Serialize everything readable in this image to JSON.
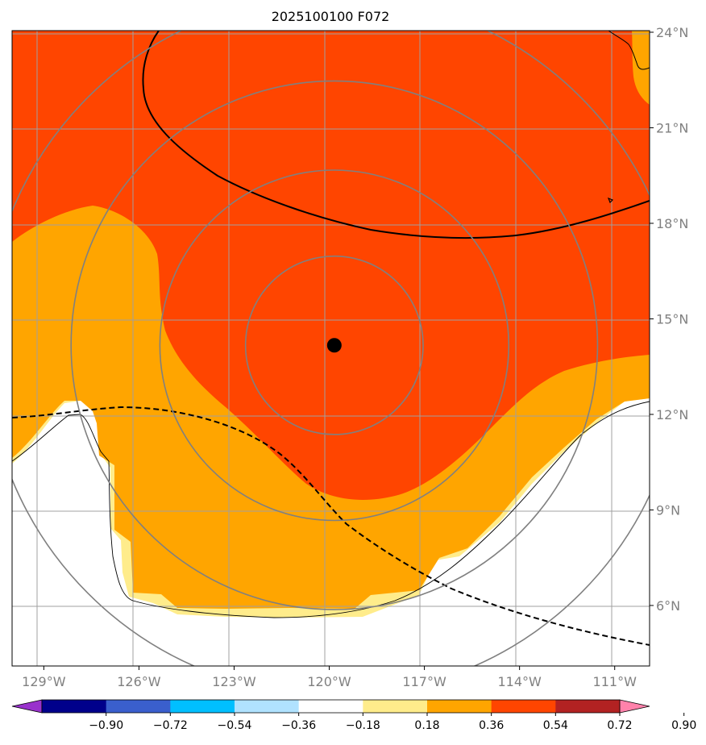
{
  "chart_data": {
    "type": "heatmap",
    "title": "2025100100 F072",
    "map": {
      "lon_range": [
        -130,
        -109.9
      ],
      "lat_range": [
        4.1,
        24.05
      ],
      "grid": true
    },
    "x_ticks": [
      {
        "value": -129,
        "label": "129°W"
      },
      {
        "value": -126,
        "label": "126°W"
      },
      {
        "value": -123,
        "label": "123°W"
      },
      {
        "value": -120,
        "label": "120°W"
      },
      {
        "value": -117,
        "label": "117°W"
      },
      {
        "value": -114,
        "label": "114°W"
      },
      {
        "value": -111,
        "label": "111°W"
      }
    ],
    "y_ticks": [
      {
        "value": 24,
        "label": "24°N"
      },
      {
        "value": 21,
        "label": "21°N"
      },
      {
        "value": 18,
        "label": "18°N"
      },
      {
        "value": 15,
        "label": "15°N"
      },
      {
        "value": 12,
        "label": "12°N"
      },
      {
        "value": 9,
        "label": "9°N"
      },
      {
        "value": 6,
        "label": "6°N"
      }
    ],
    "center": {
      "lon": -119.84,
      "lat": 14.17
    },
    "range_rings_deg": [
      2.8,
      5.5,
      8.3,
      11
    ],
    "colorbar": {
      "levels": [
        -0.9,
        -0.72,
        -0.54,
        -0.36,
        -0.18,
        0.18,
        0.36,
        0.54,
        0.72,
        0.9
      ],
      "labels": [
        "−0.90",
        "−0.72",
        "−0.54",
        "−0.36",
        "−0.18",
        "0.18",
        "0.36",
        "0.54",
        "0.72",
        "0.90"
      ],
      "colors": [
        "#9932cc",
        "#00008b",
        "#3a5fcd",
        "#00bfff",
        "#b0e2ff",
        "#ffffff",
        "#ffec8b",
        "#ffa500",
        "#ff4500",
        "#b22222",
        "#ff82ab"
      ]
    },
    "fill_colors": {
      "pale": "#ffec8b",
      "orange": "#ffa500",
      "red": "#ff4500"
    }
  }
}
